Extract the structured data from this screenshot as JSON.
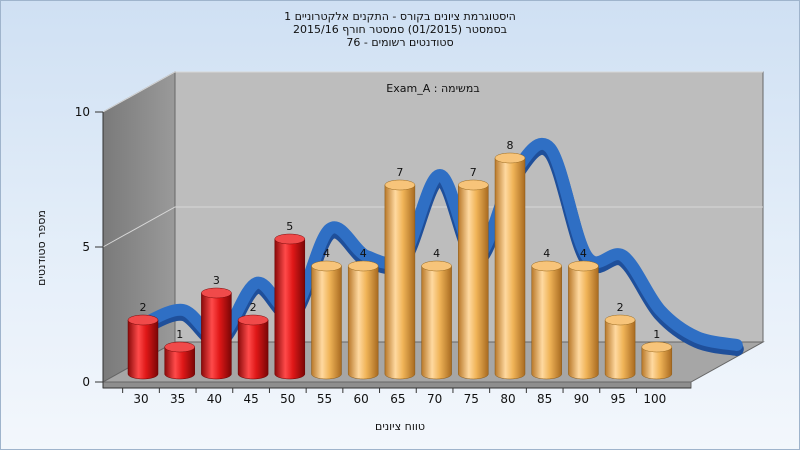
{
  "titles": {
    "line1": "היסטוגרמת ציונים בקורס - התקנים אלקטרוניים 1",
    "line2": "בסמסטר  (01/2015)  סמסטר חורף 2015/16",
    "line3": "סטודנטים רשומים - 76"
  },
  "colors": {
    "fail_bar": "#e02020",
    "pass_bar": "#f0b050",
    "curve": "#2f6fc4",
    "plot_bg": "#bdbdbd",
    "left_wall": "#8c8c8c",
    "floor": "#a8a8a8"
  },
  "chart_data": {
    "type": "bar",
    "title": "Exam_A : במשימה",
    "xlabel": "טווח ציונים",
    "ylabel": "מספר סטודנטים",
    "categories": [
      "30",
      "35",
      "40",
      "45",
      "50",
      "55",
      "60",
      "65",
      "70",
      "75",
      "80",
      "85",
      "90",
      "95",
      "100"
    ],
    "values": [
      2,
      1,
      3,
      2,
      5,
      4,
      4,
      7,
      4,
      7,
      8,
      4,
      4,
      2,
      1
    ],
    "fail_threshold_count": 5,
    "yticks": [
      0,
      5,
      10
    ],
    "ylim": [
      0,
      10
    ],
    "grid": true,
    "legend": "none",
    "smoothed_curve": true
  }
}
